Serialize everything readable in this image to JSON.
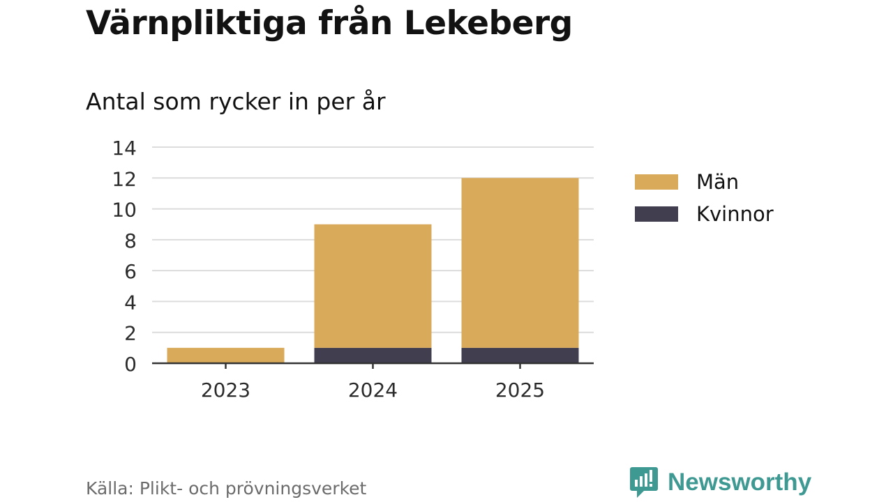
{
  "header": {
    "title": "Värnpliktiga från Lekeberg",
    "subtitle": "Antal som rycker in per år"
  },
  "legend": {
    "items": [
      {
        "label": "Män",
        "color": "#d9aa59"
      },
      {
        "label": "Kvinnor",
        "color": "#413e4f"
      }
    ]
  },
  "footer": {
    "source": "Källa: Plikt- och prövningsverket",
    "brand": "Newsworthy",
    "brand_color": "#3f9993",
    "brand_icon": "bar-chart-speech-bubble-icon"
  },
  "chart_data": {
    "type": "bar",
    "stacked": true,
    "title": "Värnpliktiga från Lekeberg",
    "subtitle": "Antal som rycker in per år",
    "xlabel": "",
    "ylabel": "",
    "categories": [
      "2023",
      "2024",
      "2025"
    ],
    "series": [
      {
        "name": "Kvinnor",
        "color": "#413e4f",
        "values": [
          0,
          1,
          1
        ]
      },
      {
        "name": "Män",
        "color": "#d9aa59",
        "values": [
          1,
          8,
          11
        ]
      }
    ],
    "ylim": [
      0,
      14
    ],
    "yticks": [
      0,
      2,
      4,
      6,
      8,
      10,
      12,
      14
    ],
    "grid": true,
    "legend_position": "right"
  }
}
